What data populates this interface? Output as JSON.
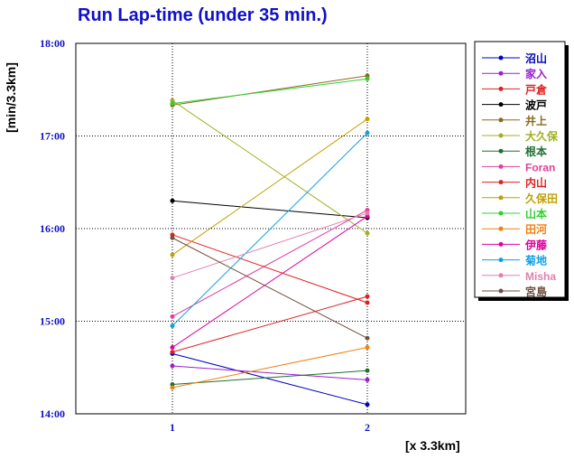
{
  "chart_data": {
    "type": "line",
    "title": "Run Lap-time (under 35 min.)",
    "xlabel": "[x 3.3km]",
    "ylabel": "[min/3.3km]",
    "x": [
      1,
      2
    ],
    "x_ticks": [
      "1",
      "2"
    ],
    "y_ticks": [
      "14:00",
      "15:00",
      "16:00",
      "17:00",
      "18:00"
    ],
    "ylim_min": [
      840,
      1080
    ],
    "grid": true,
    "legend_position": "right",
    "series": [
      {
        "name": "沼山",
        "color": "#0000c0",
        "values": [
          "14:39",
          "14:06"
        ]
      },
      {
        "name": "家入",
        "color": "#9a20d0",
        "values": [
          "14:31",
          "14:22"
        ]
      },
      {
        "name": "戸倉",
        "color": "#e02020",
        "values": [
          "14:40",
          "15:16"
        ]
      },
      {
        "name": "波戸",
        "color": "#000000",
        "values": [
          "16:18",
          "16:07"
        ]
      },
      {
        "name": "井上",
        "color": "#8a6a20",
        "values": [
          "17:20",
          "17:39"
        ]
      },
      {
        "name": "大久保",
        "color": "#a0b020",
        "values": [
          "17:23",
          "15:57"
        ]
      },
      {
        "name": "根本",
        "color": "#207030",
        "values": [
          "14:19",
          "14:28"
        ]
      },
      {
        "name": "Foran",
        "color": "#e040a0",
        "values": [
          "15:03",
          "16:12"
        ]
      },
      {
        "name": "内山",
        "color": "#e02020",
        "values": [
          "15:56",
          "15:12"
        ]
      },
      {
        "name": "久保田",
        "color": "#c0a000",
        "values": [
          "15:43",
          "17:11"
        ]
      },
      {
        "name": "山本",
        "color": "#30d030",
        "values": [
          "17:21",
          "17:37"
        ]
      },
      {
        "name": "田河",
        "color": "#f08010",
        "values": [
          "14:17",
          "14:43"
        ]
      },
      {
        "name": "伊藤",
        "color": "#e000a0",
        "values": [
          "14:43",
          "16:08"
        ]
      },
      {
        "name": "菊地",
        "color": "#10a0e0",
        "values": [
          "14:57",
          "17:02"
        ]
      },
      {
        "name": "Misha",
        "color": "#e080b0",
        "values": [
          "15:28",
          "16:10"
        ]
      },
      {
        "name": "宮島",
        "color": "#705040",
        "values": [
          "15:54",
          "14:49"
        ]
      }
    ]
  }
}
